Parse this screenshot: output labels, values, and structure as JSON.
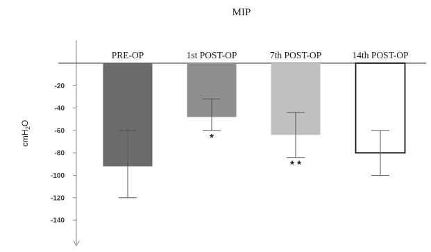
{
  "chart_data": {
    "type": "bar",
    "title": "MIP",
    "ylabel": "cmH2O",
    "categories": [
      "PRE-OP",
      "1st POST-OP",
      "7th POST-OP",
      "14th POST-OP"
    ],
    "values": [
      -92,
      -48,
      -64,
      -80
    ],
    "error_low": [
      -120,
      -60,
      -84,
      -100
    ],
    "error_high": [
      -60,
      -32,
      -44,
      -60
    ],
    "significance": [
      "",
      "*",
      "* *",
      ""
    ],
    "bar_colors": [
      "#6b6b6d",
      "#8d8e90",
      "#bfc0c2",
      "#ffffff"
    ],
    "yticks": [
      -20,
      -40,
      -60,
      -80,
      -100,
      -120,
      -140
    ],
    "ylim": [
      -160,
      0
    ],
    "grid": false,
    "legend": "none"
  }
}
